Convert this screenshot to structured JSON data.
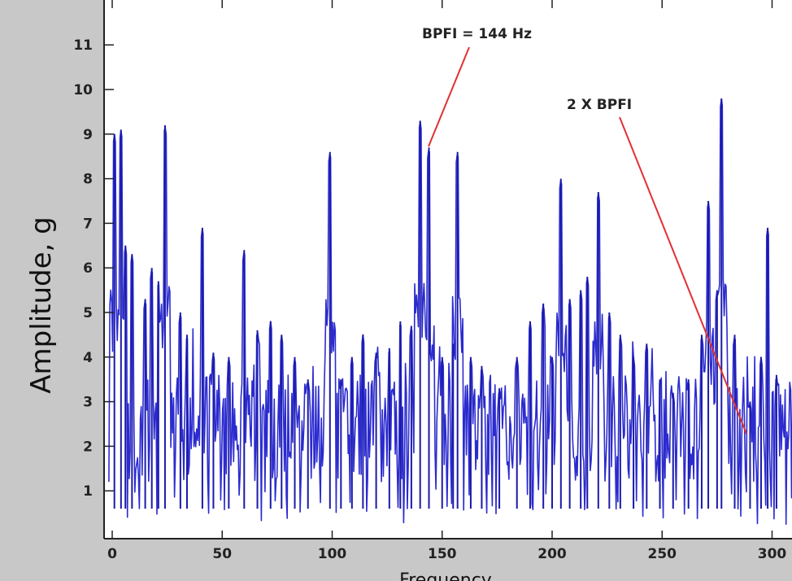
{
  "chart_data": {
    "type": "line",
    "title": "",
    "xlabel": "Frequency",
    "ylabel": "Amplitude, g",
    "xlim": [
      0,
      300
    ],
    "ylim": [
      0,
      12
    ],
    "xticks": [
      "0",
      "50",
      "100",
      "150",
      "200",
      "250",
      "300"
    ],
    "yticks": [
      "1",
      "2",
      "3",
      "4",
      "5",
      "6",
      "7",
      "8",
      "9",
      "10",
      "11"
    ],
    "grid": false,
    "series": [
      {
        "color": "#2b2bd0",
        "peaks": [
          {
            "x": 1,
            "y": 9.0
          },
          {
            "x": 4,
            "y": 9.1
          },
          {
            "x": 6,
            "y": 6.5
          },
          {
            "x": 9,
            "y": 6.3
          },
          {
            "x": 15,
            "y": 5.3
          },
          {
            "x": 18,
            "y": 6.0
          },
          {
            "x": 21,
            "y": 5.7
          },
          {
            "x": 24,
            "y": 9.2
          },
          {
            "x": 31,
            "y": 5.0
          },
          {
            "x": 34,
            "y": 4.5
          },
          {
            "x": 41,
            "y": 6.9
          },
          {
            "x": 46,
            "y": 4.1
          },
          {
            "x": 53,
            "y": 4.0
          },
          {
            "x": 60,
            "y": 6.4
          },
          {
            "x": 66,
            "y": 4.6
          },
          {
            "x": 72,
            "y": 4.8
          },
          {
            "x": 77,
            "y": 4.5
          },
          {
            "x": 83,
            "y": 4.0
          },
          {
            "x": 89,
            "y": 3.5
          },
          {
            "x": 99,
            "y": 8.6
          },
          {
            "x": 104,
            "y": 3.5
          },
          {
            "x": 109,
            "y": 4.0
          },
          {
            "x": 114,
            "y": 4.5
          },
          {
            "x": 120,
            "y": 4.1
          },
          {
            "x": 126,
            "y": 4.2
          },
          {
            "x": 131,
            "y": 4.8
          },
          {
            "x": 136,
            "y": 4.7
          },
          {
            "x": 140,
            "y": 9.3
          },
          {
            "x": 144,
            "y": 8.7
          },
          {
            "x": 150,
            "y": 4.0
          },
          {
            "x": 155,
            "y": 4.3
          },
          {
            "x": 157,
            "y": 8.6
          },
          {
            "x": 163,
            "y": 4.0
          },
          {
            "x": 168,
            "y": 3.8
          },
          {
            "x": 176,
            "y": 3.3
          },
          {
            "x": 184,
            "y": 4.0
          },
          {
            "x": 190,
            "y": 4.8
          },
          {
            "x": 196,
            "y": 5.2
          },
          {
            "x": 200,
            "y": 4.0
          },
          {
            "x": 204,
            "y": 8.0
          },
          {
            "x": 208,
            "y": 5.3
          },
          {
            "x": 213,
            "y": 5.5
          },
          {
            "x": 216,
            "y": 5.8
          },
          {
            "x": 221,
            "y": 7.7
          },
          {
            "x": 226,
            "y": 5.0
          },
          {
            "x": 231,
            "y": 4.5
          },
          {
            "x": 237,
            "y": 4.0
          },
          {
            "x": 243,
            "y": 4.3
          },
          {
            "x": 249,
            "y": 3.5
          },
          {
            "x": 255,
            "y": 3.2
          },
          {
            "x": 262,
            "y": 3.5
          },
          {
            "x": 268,
            "y": 4.5
          },
          {
            "x": 271,
            "y": 7.5
          },
          {
            "x": 275,
            "y": 5.5
          },
          {
            "x": 277,
            "y": 9.8
          },
          {
            "x": 283,
            "y": 4.5
          },
          {
            "x": 290,
            "y": 3.0
          },
          {
            "x": 295,
            "y": 4.0
          },
          {
            "x": 298,
            "y": 6.9
          },
          {
            "x": 302,
            "y": 3.6
          }
        ]
      }
    ],
    "annotations": [
      {
        "text": "BPFI = 144 Hz",
        "x": 144,
        "y": 8.7
      },
      {
        "text": "2 X BPFI",
        "x": 288,
        "y": 2.2
      }
    ]
  }
}
